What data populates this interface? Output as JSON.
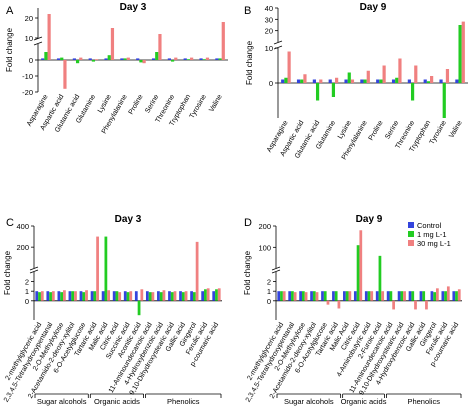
{
  "figure": {
    "colors": {
      "Control": "#3344dd",
      "1 mg L-1": "#22cc22",
      "30 mg L-1": "#f08080"
    }
  },
  "chart_data": [
    {
      "id": "A",
      "type": "bar",
      "panel_letter": "A",
      "title": "Day 3",
      "ylabel": "Fold change",
      "axis_break": {
        "lower": [
          -20,
          10
        ],
        "upper": [
          10,
          25
        ]
      },
      "lower_ticks": [
        -20,
        -10,
        0
      ],
      "upper_ticks": [
        10,
        20
      ],
      "categories": [
        "Asparagine",
        "Aspartic acid",
        "Glutamic acid",
        "Glutamine",
        "Lysine",
        "Phenylalanine",
        "Proline",
        "Serine",
        "Threonine",
        "Tryptophan",
        "Tyrosine",
        "Valine"
      ],
      "series": [
        {
          "name": "Control",
          "values": [
            1,
            1,
            1,
            1,
            1,
            1,
            1,
            1,
            1,
            1,
            1,
            1
          ]
        },
        {
          "name": "1 mg L-1",
          "values": [
            5,
            1.5,
            -2,
            -1,
            3,
            1,
            -1.5,
            5,
            -1,
            0.5,
            0.5,
            1
          ]
        },
        {
          "name": "30 mg L-1",
          "values": [
            22,
            -18,
            1.5,
            0.5,
            15,
            1.5,
            -2,
            12,
            1.5,
            1.5,
            1.5,
            18
          ]
        }
      ]
    },
    {
      "id": "B",
      "type": "bar",
      "panel_letter": "B",
      "title": "Day 9",
      "ylabel": "Fold change",
      "axis_break": {
        "lower": [
          -10,
          10
        ],
        "upper": [
          10,
          40
        ]
      },
      "lower_ticks": [
        0,
        10
      ],
      "upper_ticks": [
        20,
        30,
        40
      ],
      "categories": [
        "Asparagine",
        "Aspartic acid",
        "Glutamic acid",
        "Glutamine",
        "Lysine",
        "Phenylalanine",
        "Proline",
        "Serine",
        "Threonine",
        "Tryptophan",
        "Tyrosine",
        "Valine"
      ],
      "series": [
        {
          "name": "Control",
          "values": [
            1,
            1,
            1,
            1,
            1,
            1,
            1,
            1,
            1,
            1,
            1,
            1
          ]
        },
        {
          "name": "1 mg L-1",
          "values": [
            1.5,
            1,
            -5,
            -4,
            3,
            1,
            1,
            1.5,
            -5,
            0.5,
            -10,
            25
          ]
        },
        {
          "name": "30 mg L-1",
          "values": [
            9,
            2.5,
            1,
            1.5,
            1,
            3.5,
            5,
            7,
            5,
            2,
            4,
            28
          ]
        }
      ]
    },
    {
      "id": "C",
      "type": "bar",
      "panel_letter": "C",
      "title": "Day 3",
      "ylabel": "Fold change",
      "axis_break": {
        "lower": [
          -2,
          3
        ],
        "upper": [
          3,
          400
        ]
      },
      "lower_ticks": [
        0,
        1,
        2
      ],
      "upper_ticks": [
        200,
        400
      ],
      "categories": [
        "2-methylglyceric acid",
        "2,3,4,5-Tetrahydroxypentanal",
        "2-O-Methylxylose",
        "2-Acetamido-2-deoxy-xylitol",
        "6-O-Acetylglucose",
        "Tartaric acid",
        "Malic acid",
        "Citric acid",
        "Succinic acid",
        "Aconitic acid",
        "11-Aminoundecanoic acid",
        "4-Hydroxybenzoic acid",
        "9,10-Dihydroxystearic acid",
        "Gallic acid",
        "Gingerol",
        "Ferulic acid",
        "p-coumaric acid"
      ],
      "series": [
        {
          "name": "Control",
          "values": [
            1,
            1,
            1,
            1,
            1,
            1,
            1,
            1,
            1,
            1,
            1,
            1,
            1,
            1,
            1,
            1,
            1
          ]
        },
        {
          "name": "1 mg L-1",
          "values": [
            0.9,
            0.9,
            0.9,
            1,
            0.9,
            1,
            300,
            1,
            0.9,
            -1.5,
            0.9,
            0.9,
            0.9,
            0.9,
            0.9,
            1.2,
            1.2
          ]
        },
        {
          "name": "30 mg L-1",
          "values": [
            1,
            1,
            1.1,
            1,
            1.1,
            300,
            1.1,
            0.9,
            1,
            1.2,
            0.9,
            1.1,
            1,
            1,
            250,
            1.3,
            1.3
          ]
        }
      ]
    },
    {
      "id": "D",
      "type": "bar",
      "panel_letter": "D",
      "title": "Day 9",
      "ylabel": "Fold change",
      "axis_break": {
        "lower": [
          -2,
          3
        ],
        "upper": [
          3,
          200
        ]
      },
      "lower_ticks": [
        0,
        1,
        2
      ],
      "upper_ticks": [
        100,
        200
      ],
      "categories": [
        "2-methylglyceric acid",
        "2,3,4,5-Tetrahydroxypentanal",
        "2-O-Methylxylose",
        "2-Acetamido-2-deoxy-xylitol",
        "6-O-Acetylglucose",
        "Tartaric acid",
        "Malic Acid",
        "Citric acid",
        "4-Aminobutyric acid",
        "2-Furoic acid",
        "11-Aminoundecanoic acid",
        "9,10-Dihydroxystearic acid",
        "4-Hydroxybenzoic acid",
        "Gallic acid",
        "Gingerol",
        "Ferulic acid",
        "p-coumaric acid"
      ],
      "series": [
        {
          "name": "Control",
          "values": [
            1,
            1,
            1,
            1,
            1,
            1,
            1,
            1,
            1,
            1,
            1,
            1,
            1,
            1,
            1,
            1,
            1
          ]
        },
        {
          "name": "1 mg L-1",
          "values": [
            1,
            1,
            1,
            1,
            1,
            1,
            1,
            110,
            1,
            60,
            1,
            1,
            1,
            1,
            0.9,
            1,
            1
          ]
        },
        {
          "name": "30 mg L-1",
          "values": [
            1,
            0.9,
            0.9,
            0.9,
            -0.4,
            -0.8,
            1,
            180,
            1,
            1,
            -0.9,
            1,
            -0.9,
            -0.9,
            1.3,
            1.5,
            1.2
          ]
        }
      ]
    }
  ],
  "legend": {
    "title": "",
    "items": [
      {
        "label": "Control",
        "color": "#3344dd"
      },
      {
        "label": "1 mg L-1",
        "color": "#22cc22"
      },
      {
        "label": "30 mg L-1",
        "color": "#f08080"
      }
    ]
  },
  "groups": {
    "C": [
      {
        "label": "Sugar alcohols",
        "from": 0,
        "to": 4
      },
      {
        "label": "Organic acids",
        "from": 5,
        "to": 9
      },
      {
        "label": "Phenolics",
        "from": 10,
        "to": 16
      }
    ],
    "D": [
      {
        "label": "Sugar alcohols",
        "from": 0,
        "to": 5
      },
      {
        "label": "Organic acids",
        "from": 6,
        "to": 9
      },
      {
        "label": "Phenolics",
        "from": 10,
        "to": 16
      }
    ]
  }
}
